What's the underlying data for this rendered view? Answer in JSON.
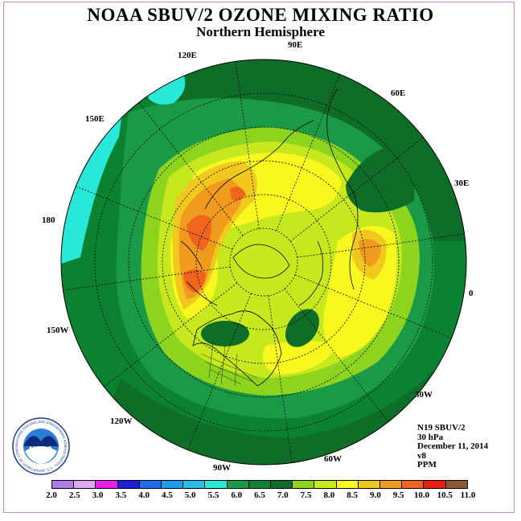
{
  "title": "NOAA SBUV/2 OZONE MIXING RATIO",
  "subtitle": "Northern Hemisphere",
  "longitude_labels": [
    "90E",
    "60E",
    "30E",
    "0",
    "30W",
    "60W",
    "90W",
    "120W",
    "150W",
    "180",
    "150E",
    "120E"
  ],
  "info": {
    "satellite": "N19 SBUV/2",
    "level": "30 hPa",
    "date": "December 11, 2014",
    "version": "v8",
    "units": "PPM"
  },
  "legend": {
    "ticks": [
      "2.0",
      "2.5",
      "3.0",
      "3.5",
      "4.0",
      "4.5",
      "5.0",
      "5.5",
      "6.0",
      "6.5",
      "7.0",
      "7.5",
      "8.0",
      "8.5",
      "9.0",
      "9.5",
      "10.0",
      "10.5",
      "11.0"
    ],
    "colors": [
      "#b07ae8",
      "#dca8f0",
      "#e81ee8",
      "#1e1edc",
      "#1e6ef0",
      "#1e9cf0",
      "#28bce8",
      "#28e8d8",
      "#1a9a46",
      "#0a8232",
      "#0e6e28",
      "#8cd41e",
      "#c8e81e",
      "#f8f81e",
      "#f0c81e",
      "#f09a1e",
      "#f0641e",
      "#e81e10",
      "#8c5a32"
    ]
  },
  "logo": {
    "text": "NOAA",
    "ring_text": "NATIONAL OCEANIC AND ATMOSPHERIC ADMINISTRATION · U.S. DEPARTMENT OF COMMERCE"
  }
}
